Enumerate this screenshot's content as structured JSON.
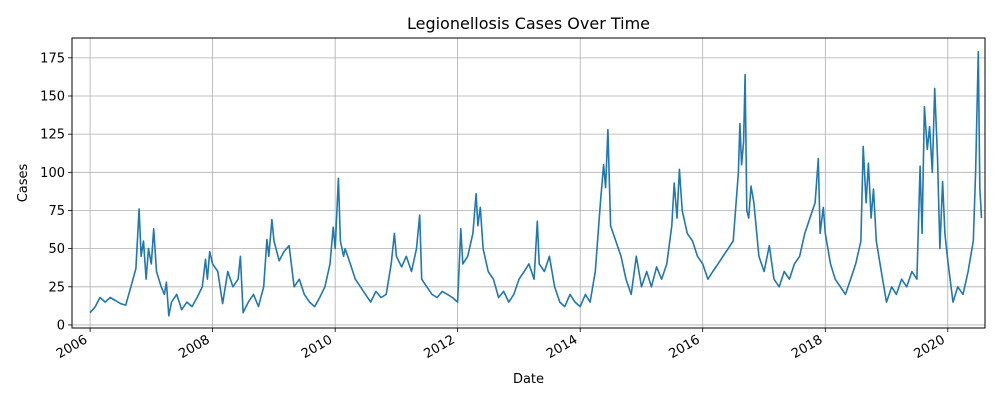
{
  "chart_data": {
    "type": "line",
    "title": "Legionellosis Cases Over Time",
    "xlabel": "Date",
    "ylabel": "Cases",
    "x_axis_type": "date",
    "xlim": [
      "2005-09-15",
      "2020-08-10"
    ],
    "ylim": [
      -2,
      188
    ],
    "grid": true,
    "x_ticks": [
      {
        "date": "2006-01-01",
        "label": "2006"
      },
      {
        "date": "2008-01-01",
        "label": "2008"
      },
      {
        "date": "2010-01-01",
        "label": "2010"
      },
      {
        "date": "2012-01-01",
        "label": "2012"
      },
      {
        "date": "2014-01-01",
        "label": "2014"
      },
      {
        "date": "2016-01-01",
        "label": "2016"
      },
      {
        "date": "2018-01-01",
        "label": "2018"
      },
      {
        "date": "2020-01-01",
        "label": "2020"
      }
    ],
    "y_ticks": [
      0,
      25,
      50,
      75,
      100,
      125,
      150,
      175
    ],
    "line_color": "#1f77b4",
    "series": [
      {
        "name": "",
        "points": [
          [
            "2006-01-01",
            8
          ],
          [
            "2006-02-01",
            12
          ],
          [
            "2006-03-01",
            18
          ],
          [
            "2006-04-01",
            15
          ],
          [
            "2006-05-01",
            18
          ],
          [
            "2006-06-01",
            16
          ],
          [
            "2006-07-01",
            14
          ],
          [
            "2006-08-01",
            13
          ],
          [
            "2006-09-01",
            25
          ],
          [
            "2006-10-01",
            37
          ],
          [
            "2006-10-20",
            76
          ],
          [
            "2006-11-01",
            45
          ],
          [
            "2006-11-15",
            55
          ],
          [
            "2006-12-01",
            30
          ],
          [
            "2006-12-15",
            50
          ],
          [
            "2007-01-01",
            40
          ],
          [
            "2007-01-15",
            63
          ],
          [
            "2007-02-01",
            35
          ],
          [
            "2007-03-01",
            25
          ],
          [
            "2007-03-20",
            20
          ],
          [
            "2007-04-01",
            28
          ],
          [
            "2007-04-15",
            6
          ],
          [
            "2007-05-01",
            15
          ],
          [
            "2007-06-01",
            20
          ],
          [
            "2007-07-01",
            10
          ],
          [
            "2007-08-01",
            15
          ],
          [
            "2007-09-01",
            12
          ],
          [
            "2007-10-01",
            18
          ],
          [
            "2007-11-01",
            25
          ],
          [
            "2007-11-20",
            43
          ],
          [
            "2007-12-01",
            30
          ],
          [
            "2007-12-15",
            48
          ],
          [
            "2008-01-01",
            40
          ],
          [
            "2008-02-01",
            35
          ],
          [
            "2008-03-01",
            14
          ],
          [
            "2008-04-01",
            35
          ],
          [
            "2008-05-01",
            25
          ],
          [
            "2008-06-01",
            30
          ],
          [
            "2008-06-15",
            45
          ],
          [
            "2008-07-01",
            8
          ],
          [
            "2008-08-01",
            15
          ],
          [
            "2008-09-01",
            20
          ],
          [
            "2008-10-01",
            12
          ],
          [
            "2008-11-01",
            25
          ],
          [
            "2008-11-20",
            56
          ],
          [
            "2008-12-01",
            45
          ],
          [
            "2008-12-20",
            69
          ],
          [
            "2009-01-01",
            55
          ],
          [
            "2009-02-01",
            42
          ],
          [
            "2009-03-01",
            48
          ],
          [
            "2009-04-01",
            52
          ],
          [
            "2009-05-01",
            25
          ],
          [
            "2009-06-01",
            30
          ],
          [
            "2009-07-01",
            20
          ],
          [
            "2009-08-01",
            15
          ],
          [
            "2009-09-01",
            12
          ],
          [
            "2009-10-01",
            18
          ],
          [
            "2009-11-01",
            25
          ],
          [
            "2009-12-01",
            40
          ],
          [
            "2009-12-20",
            64
          ],
          [
            "2010-01-01",
            50
          ],
          [
            "2010-01-20",
            96
          ],
          [
            "2010-02-01",
            55
          ],
          [
            "2010-02-20",
            45
          ],
          [
            "2010-03-01",
            50
          ],
          [
            "2010-04-01",
            40
          ],
          [
            "2010-05-01",
            30
          ],
          [
            "2010-06-01",
            25
          ],
          [
            "2010-07-01",
            20
          ],
          [
            "2010-08-01",
            15
          ],
          [
            "2010-09-01",
            22
          ],
          [
            "2010-10-01",
            18
          ],
          [
            "2010-11-01",
            20
          ],
          [
            "2010-12-01",
            40
          ],
          [
            "2010-12-20",
            60
          ],
          [
            "2011-01-01",
            45
          ],
          [
            "2011-02-01",
            38
          ],
          [
            "2011-03-01",
            45
          ],
          [
            "2011-04-01",
            35
          ],
          [
            "2011-05-01",
            50
          ],
          [
            "2011-05-20",
            72
          ],
          [
            "2011-06-01",
            30
          ],
          [
            "2011-07-01",
            25
          ],
          [
            "2011-08-01",
            20
          ],
          [
            "2011-09-01",
            18
          ],
          [
            "2011-10-01",
            22
          ],
          [
            "2011-11-01",
            20
          ],
          [
            "2011-12-01",
            18
          ],
          [
            "2012-01-01",
            15
          ],
          [
            "2012-01-20",
            63
          ],
          [
            "2012-02-01",
            40
          ],
          [
            "2012-03-01",
            45
          ],
          [
            "2012-04-01",
            60
          ],
          [
            "2012-04-20",
            86
          ],
          [
            "2012-05-01",
            65
          ],
          [
            "2012-05-15",
            77
          ],
          [
            "2012-06-01",
            50
          ],
          [
            "2012-07-01",
            35
          ],
          [
            "2012-08-01",
            30
          ],
          [
            "2012-09-01",
            18
          ],
          [
            "2012-10-01",
            22
          ],
          [
            "2012-11-01",
            15
          ],
          [
            "2012-12-01",
            20
          ],
          [
            "2013-01-01",
            30
          ],
          [
            "2013-02-01",
            35
          ],
          [
            "2013-03-01",
            40
          ],
          [
            "2013-04-01",
            30
          ],
          [
            "2013-04-20",
            68
          ],
          [
            "2013-05-01",
            40
          ],
          [
            "2013-06-01",
            35
          ],
          [
            "2013-07-01",
            45
          ],
          [
            "2013-08-01",
            25
          ],
          [
            "2013-09-01",
            15
          ],
          [
            "2013-10-01",
            12
          ],
          [
            "2013-11-01",
            20
          ],
          [
            "2013-12-01",
            15
          ],
          [
            "2014-01-01",
            12
          ],
          [
            "2014-02-01",
            20
          ],
          [
            "2014-03-01",
            15
          ],
          [
            "2014-04-01",
            35
          ],
          [
            "2014-05-01",
            80
          ],
          [
            "2014-05-20",
            105
          ],
          [
            "2014-06-01",
            90
          ],
          [
            "2014-06-15",
            128
          ],
          [
            "2014-07-01",
            65
          ],
          [
            "2014-08-01",
            55
          ],
          [
            "2014-09-01",
            45
          ],
          [
            "2014-10-01",
            30
          ],
          [
            "2014-11-01",
            20
          ],
          [
            "2014-12-01",
            45
          ],
          [
            "2015-01-01",
            25
          ],
          [
            "2015-02-01",
            35
          ],
          [
            "2015-03-01",
            25
          ],
          [
            "2015-04-01",
            38
          ],
          [
            "2015-05-01",
            30
          ],
          [
            "2015-06-01",
            40
          ],
          [
            "2015-07-01",
            65
          ],
          [
            "2015-07-15",
            93
          ],
          [
            "2015-08-01",
            70
          ],
          [
            "2015-08-15",
            102
          ],
          [
            "2015-09-01",
            75
          ],
          [
            "2015-10-01",
            60
          ],
          [
            "2015-11-01",
            55
          ],
          [
            "2015-12-01",
            45
          ],
          [
            "2016-01-01",
            40
          ],
          [
            "2016-02-01",
            30
          ],
          [
            "2016-03-01",
            35
          ],
          [
            "2016-04-01",
            40
          ],
          [
            "2016-05-01",
            45
          ],
          [
            "2016-06-01",
            50
          ],
          [
            "2016-07-01",
            55
          ],
          [
            "2016-08-01",
            100
          ],
          [
            "2016-08-10",
            132
          ],
          [
            "2016-08-20",
            105
          ],
          [
            "2016-09-01",
            120
          ],
          [
            "2016-09-10",
            164
          ],
          [
            "2016-09-20",
            75
          ],
          [
            "2016-10-01",
            70
          ],
          [
            "2016-10-15",
            91
          ],
          [
            "2016-11-01",
            80
          ],
          [
            "2016-12-01",
            45
          ],
          [
            "2017-01-01",
            35
          ],
          [
            "2017-02-01",
            52
          ],
          [
            "2017-03-01",
            30
          ],
          [
            "2017-04-01",
            25
          ],
          [
            "2017-05-01",
            35
          ],
          [
            "2017-06-01",
            30
          ],
          [
            "2017-07-01",
            40
          ],
          [
            "2017-08-01",
            45
          ],
          [
            "2017-09-01",
            60
          ],
          [
            "2017-10-01",
            70
          ],
          [
            "2017-11-01",
            80
          ],
          [
            "2017-11-20",
            109
          ],
          [
            "2017-12-01",
            60
          ],
          [
            "2017-12-20",
            77
          ],
          [
            "2018-01-01",
            60
          ],
          [
            "2018-02-01",
            40
          ],
          [
            "2018-03-01",
            30
          ],
          [
            "2018-04-01",
            25
          ],
          [
            "2018-05-01",
            20
          ],
          [
            "2018-06-01",
            30
          ],
          [
            "2018-07-01",
            40
          ],
          [
            "2018-08-01",
            55
          ],
          [
            "2018-08-15",
            117
          ],
          [
            "2018-09-01",
            80
          ],
          [
            "2018-09-15",
            106
          ],
          [
            "2018-10-01",
            70
          ],
          [
            "2018-10-15",
            89
          ],
          [
            "2018-11-01",
            55
          ],
          [
            "2018-12-01",
            35
          ],
          [
            "2019-01-01",
            15
          ],
          [
            "2019-02-01",
            25
          ],
          [
            "2019-03-01",
            20
          ],
          [
            "2019-04-01",
            30
          ],
          [
            "2019-05-01",
            25
          ],
          [
            "2019-06-01",
            35
          ],
          [
            "2019-07-01",
            30
          ],
          [
            "2019-07-20",
            104
          ],
          [
            "2019-08-01",
            60
          ],
          [
            "2019-08-15",
            143
          ],
          [
            "2019-09-01",
            115
          ],
          [
            "2019-09-15",
            130
          ],
          [
            "2019-10-01",
            100
          ],
          [
            "2019-10-15",
            155
          ],
          [
            "2019-11-01",
            110
          ],
          [
            "2019-11-15",
            50
          ],
          [
            "2019-12-01",
            94
          ],
          [
            "2019-12-15",
            60
          ],
          [
            "2020-01-01",
            42
          ],
          [
            "2020-02-01",
            15
          ],
          [
            "2020-03-01",
            25
          ],
          [
            "2020-04-01",
            20
          ],
          [
            "2020-05-01",
            35
          ],
          [
            "2020-06-01",
            55
          ],
          [
            "2020-06-15",
            100
          ],
          [
            "2020-07-01",
            179
          ],
          [
            "2020-07-10",
            90
          ],
          [
            "2020-07-20",
            70
          ]
        ]
      }
    ]
  }
}
